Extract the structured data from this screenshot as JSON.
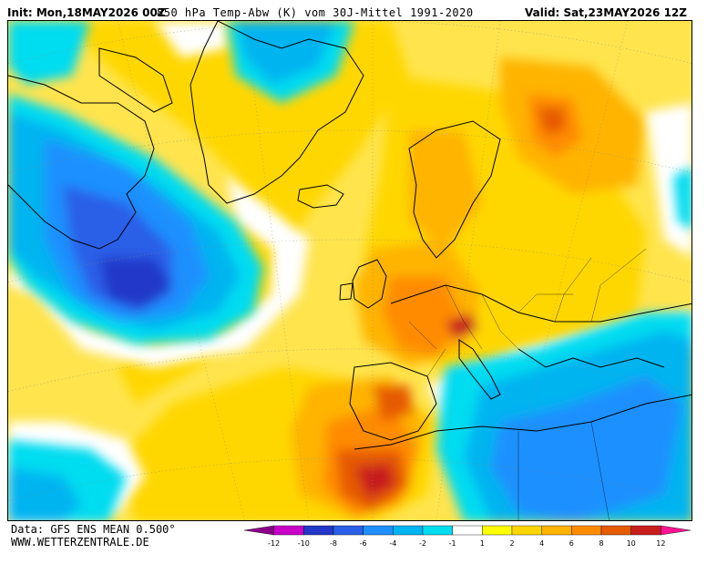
{
  "header": {
    "init_text": "Init: Mon,18MAY2026 00Z",
    "title_text": "850 hPa Temp-Abw (K) vom 30J-Mittel 1991-2020",
    "valid_text": "Valid: Sat,23MAY2026 12Z"
  },
  "footer": {
    "data_source": "Data: GFS ENS MEAN 0.500°",
    "website": "WWW.WETTERZENTRALE.DE"
  },
  "legend": {
    "unit": "K",
    "tick_labels": [
      "-12",
      "-10",
      "-8",
      "-6",
      "-4",
      "-2",
      "-1",
      "1",
      "2",
      "4",
      "6",
      "8",
      "10",
      "12"
    ],
    "bins": [
      {
        "lo": "-14",
        "hi": "-12",
        "color": "#8b008b"
      },
      {
        "lo": "-12",
        "hi": "-10",
        "color": "#c800c8"
      },
      {
        "lo": "-10",
        "hi": "-8",
        "color": "#2338c8"
      },
      {
        "lo": "-8",
        "hi": "-6",
        "color": "#2a5fe8"
      },
      {
        "lo": "-6",
        "hi": "-4",
        "color": "#1e90ff"
      },
      {
        "lo": "-4",
        "hi": "-2",
        "color": "#00b4f0"
      },
      {
        "lo": "-2",
        "hi": "-1",
        "color": "#00dcf0"
      },
      {
        "lo": "-1",
        "hi": "1",
        "color": "#ffffff"
      },
      {
        "lo": "1",
        "hi": "2",
        "color": "#ffff00"
      },
      {
        "lo": "2",
        "hi": "4",
        "color": "#ffd700"
      },
      {
        "lo": "4",
        "hi": "6",
        "color": "#ffb400"
      },
      {
        "lo": "6",
        "hi": "8",
        "color": "#ff8c00"
      },
      {
        "lo": "8",
        "hi": "10",
        "color": "#e65a00"
      },
      {
        "lo": "10",
        "hi": "12",
        "color": "#c81e1e"
      },
      {
        "lo": "12",
        "hi": "14",
        "color": "#ff1493"
      }
    ]
  },
  "map": {
    "background_color": "#ffe44d",
    "colors": {
      "white": "#ffffff",
      "cyan": "#00dcf0",
      "light_blue": "#00b4f0",
      "blue": "#1e90ff",
      "mid_blue": "#2a5fe8",
      "deep_blue": "#2338c8",
      "yellow": "#ffff00",
      "gold": "#ffd700",
      "orange_light": "#ffb400",
      "orange": "#ff8c00",
      "dark_orange": "#e65a00",
      "red": "#c81e1e",
      "coast": "#000000"
    }
  }
}
